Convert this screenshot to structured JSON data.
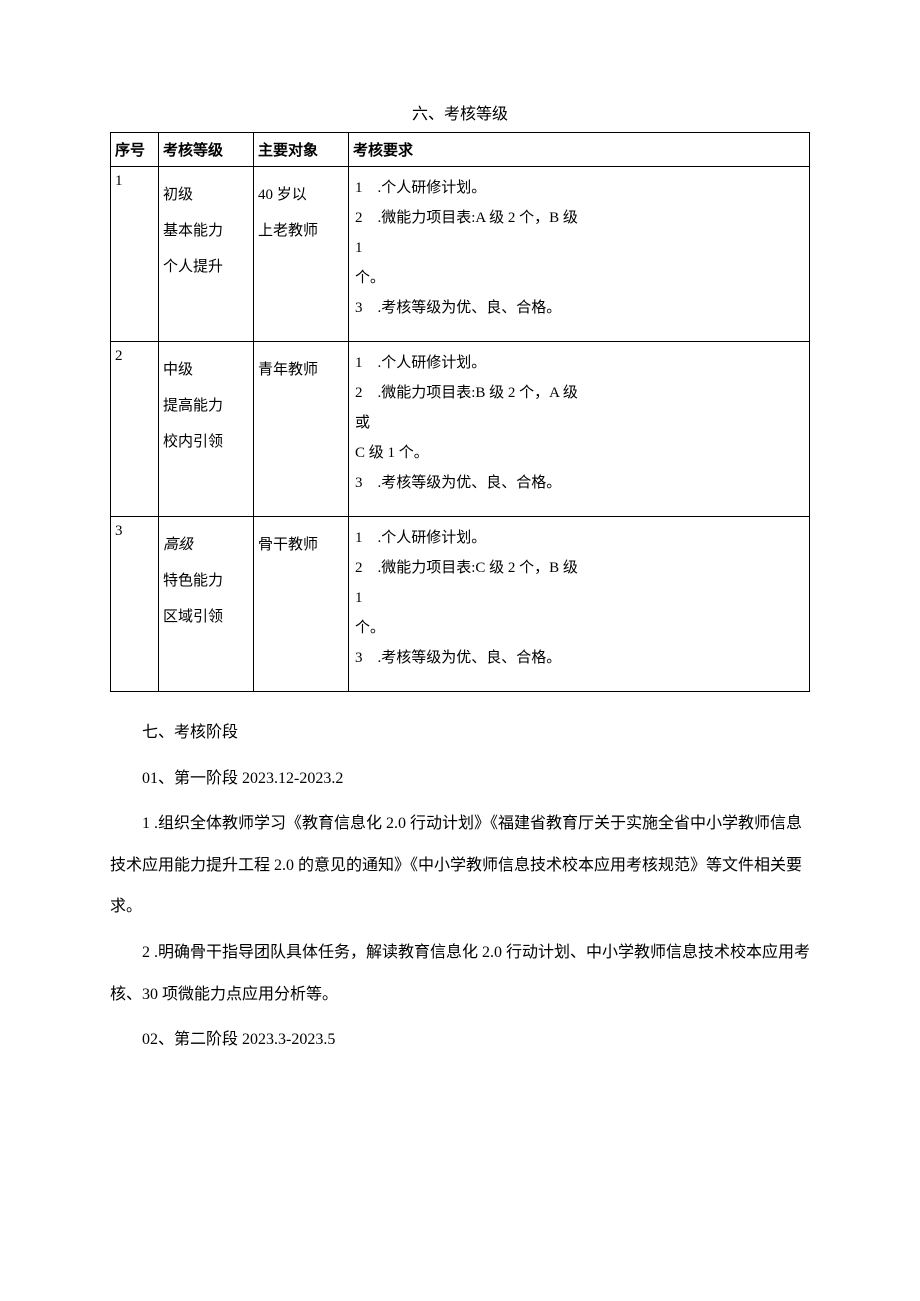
{
  "heading6": "六、考核等级",
  "table": {
    "headers": {
      "idx": "序号",
      "level": "考核等级",
      "target": "主要对象",
      "req": "考核要求"
    },
    "rows": [
      {
        "idx": "1",
        "level_l1": "初级",
        "level_l2": "基本能力",
        "level_l3": "个人提升",
        "target_l1": "40 岁以",
        "target_l2": "上老教师",
        "req_n1": "1",
        "req_t1": ".个人研修计划。",
        "req_n2": "2",
        "req_t2a": ".微能力项目表:A 级 2 个，B 级",
        "req_t2b": "1",
        "req_t2c": "个。",
        "req_n3": "3",
        "req_t3": ".考核等级为优、良、合格。"
      },
      {
        "idx": "2",
        "level_l1": "中级",
        "level_l2": "提高能力",
        "level_l3": "校内引领",
        "target_l1": "青年教师",
        "target_l2": "",
        "req_n1": "1",
        "req_t1": ".个人研修计划。",
        "req_n2": "2",
        "req_t2a": ".微能力项目表:B 级 2 个，A 级",
        "req_t2b": "或",
        "req_t2c": "C 级 1 个。",
        "req_n3": "3",
        "req_t3": ".考核等级为优、良、合格。"
      },
      {
        "idx": "3",
        "level_l1": "高级",
        "level_l1_italic": true,
        "level_l2": "特色能力",
        "level_l3": "区域引领",
        "target_l1": "骨干教师",
        "target_l2": "",
        "req_n1": "1",
        "req_t1": ".个人研修计划。",
        "req_n2": "2",
        "req_t2a": ".微能力项目表:C 级 2 个，B 级",
        "req_t2b": "1",
        "req_t2c": "个。",
        "req_n3": "3",
        "req_t3": ".考核等级为优、良、合格。"
      }
    ]
  },
  "heading7": "七、考核阶段",
  "stage01_title": "01、第一阶段 2023.12-2023.2",
  "stage01_p1": "1 .组织全体教师学习《教育信息化 2.0 行动计划》《福建省教育厅关于实施全省中小学教师信息技术应用能力提升工程 2.0 的意见的通知》《中小学教师信息技术校本应用考核规范》等文件相关要求。",
  "stage01_p2": "2 .明确骨干指导团队具体任务，解读教育信息化 2.0 行动计划、中小学教师信息技术校本应用考核、30 项微能力点应用分析等。",
  "stage02_title": "02、第二阶段 2023.3-2023.5"
}
